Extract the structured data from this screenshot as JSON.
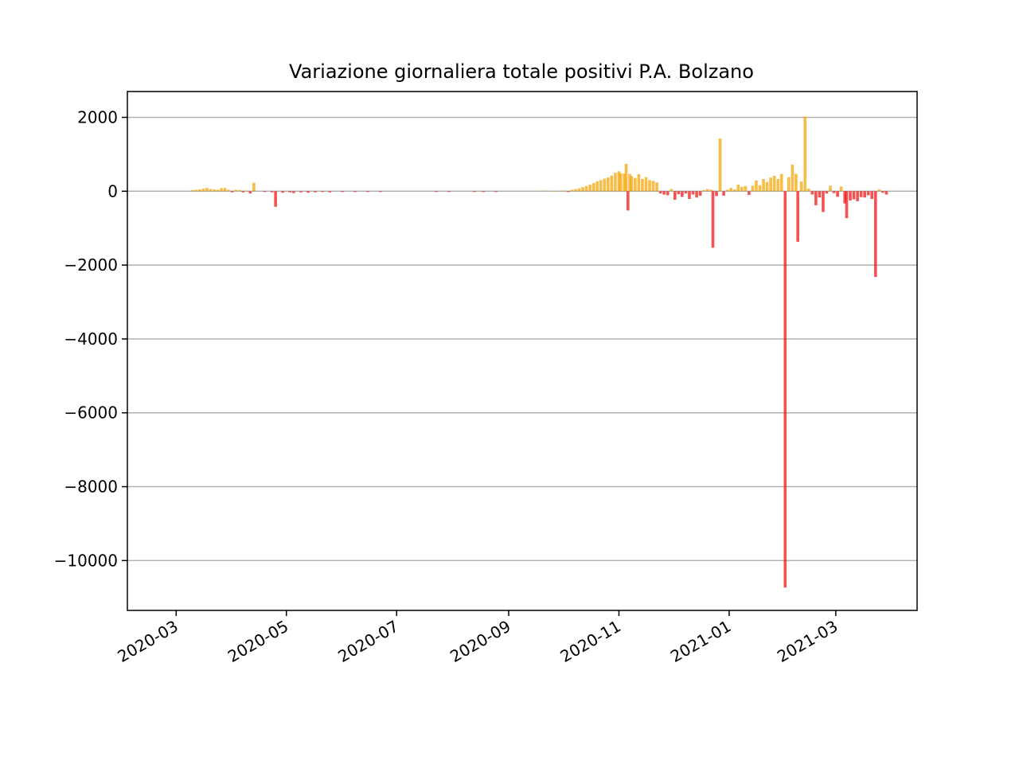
{
  "chart_data": {
    "type": "bar",
    "title": "Variazione giornaliera totale positivi P.A. Bolzano",
    "xlabel": "",
    "ylabel": "",
    "x_range": [
      "2020-02-03",
      "2021-04-15"
    ],
    "ylim": [
      -11350,
      2700
    ],
    "y_ticks": [
      2000,
      0,
      -2000,
      -4000,
      -6000,
      -8000,
      -10000
    ],
    "y_tick_labels": [
      "2000",
      "0",
      "−2000",
      "−4000",
      "−6000",
      "−8000",
      "−10000"
    ],
    "x_ticks": [
      "2020-03-01",
      "2020-05-01",
      "2020-07-01",
      "2020-09-01",
      "2020-11-01",
      "2021-01-01",
      "2021-03-01"
    ],
    "x_tick_labels": [
      "2020-03",
      "2020-05",
      "2020-07",
      "2020-09",
      "2020-11",
      "2021-01",
      "2021-03"
    ],
    "grid": "y",
    "colors": {
      "positive": "#f5a300",
      "negative": "#ee1111",
      "grid": "#b0b0b0"
    },
    "points": [
      [
        "2020-03-10",
        30
      ],
      [
        "2020-03-12",
        40
      ],
      [
        "2020-03-14",
        50
      ],
      [
        "2020-03-16",
        70
      ],
      [
        "2020-03-18",
        90
      ],
      [
        "2020-03-20",
        60
      ],
      [
        "2020-03-22",
        50
      ],
      [
        "2020-03-24",
        40
      ],
      [
        "2020-03-26",
        80
      ],
      [
        "2020-03-28",
        90
      ],
      [
        "2020-03-30",
        40
      ],
      [
        "2020-04-01",
        -30
      ],
      [
        "2020-04-03",
        40
      ],
      [
        "2020-04-05",
        30
      ],
      [
        "2020-04-07",
        -30
      ],
      [
        "2020-04-09",
        20
      ],
      [
        "2020-04-11",
        -60
      ],
      [
        "2020-04-13",
        230
      ],
      [
        "2020-04-19",
        -20
      ],
      [
        "2020-04-23",
        -30
      ],
      [
        "2020-04-25",
        -420
      ],
      [
        "2020-04-29",
        -40
      ],
      [
        "2020-05-03",
        -30
      ],
      [
        "2020-05-05",
        -50
      ],
      [
        "2020-05-09",
        -30
      ],
      [
        "2020-05-13",
        -40
      ],
      [
        "2020-05-17",
        -30
      ],
      [
        "2020-05-21",
        -20
      ],
      [
        "2020-05-25",
        -30
      ],
      [
        "2020-06-01",
        -20
      ],
      [
        "2020-06-08",
        -20
      ],
      [
        "2020-06-15",
        -10
      ],
      [
        "2020-06-22",
        -10
      ],
      [
        "2020-07-23",
        -20
      ],
      [
        "2020-07-30",
        -10
      ],
      [
        "2020-08-13",
        -10
      ],
      [
        "2020-08-18",
        -10
      ],
      [
        "2020-08-25",
        -10
      ],
      [
        "2020-09-20",
        20
      ],
      [
        "2020-09-27",
        10
      ],
      [
        "2020-10-01",
        20
      ],
      [
        "2020-10-04",
        -20
      ],
      [
        "2020-10-06",
        40
      ],
      [
        "2020-10-08",
        60
      ],
      [
        "2020-10-10",
        80
      ],
      [
        "2020-10-12",
        110
      ],
      [
        "2020-10-14",
        140
      ],
      [
        "2020-10-16",
        180
      ],
      [
        "2020-10-18",
        220
      ],
      [
        "2020-10-20",
        270
      ],
      [
        "2020-10-22",
        300
      ],
      [
        "2020-10-24",
        340
      ],
      [
        "2020-10-26",
        370
      ],
      [
        "2020-10-28",
        420
      ],
      [
        "2020-10-30",
        500
      ],
      [
        "2020-11-01",
        540
      ],
      [
        "2020-11-02",
        490
      ],
      [
        "2020-11-04",
        480
      ],
      [
        "2020-11-05",
        740
      ],
      [
        "2020-11-06",
        -520
      ],
      [
        "2020-11-07",
        470
      ],
      [
        "2020-11-08",
        410
      ],
      [
        "2020-11-10",
        360
      ],
      [
        "2020-11-12",
        460
      ],
      [
        "2020-11-14",
        330
      ],
      [
        "2020-11-16",
        380
      ],
      [
        "2020-11-18",
        300
      ],
      [
        "2020-11-20",
        280
      ],
      [
        "2020-11-22",
        240
      ],
      [
        "2020-11-24",
        -60
      ],
      [
        "2020-11-26",
        -90
      ],
      [
        "2020-11-28",
        -110
      ],
      [
        "2020-11-30",
        60
      ],
      [
        "2020-12-02",
        -230
      ],
      [
        "2020-12-04",
        -80
      ],
      [
        "2020-12-06",
        -150
      ],
      [
        "2020-12-08",
        -60
      ],
      [
        "2020-12-10",
        -210
      ],
      [
        "2020-12-12",
        -90
      ],
      [
        "2020-12-14",
        -170
      ],
      [
        "2020-12-16",
        -120
      ],
      [
        "2020-12-18",
        30
      ],
      [
        "2020-12-20",
        60
      ],
      [
        "2020-12-22",
        40
      ],
      [
        "2020-12-23",
        -1530
      ],
      [
        "2020-12-25",
        -130
      ],
      [
        "2020-12-27",
        1430
      ],
      [
        "2020-12-29",
        -120
      ],
      [
        "2020-12-31",
        40
      ],
      [
        "2021-01-02",
        90
      ],
      [
        "2021-01-04",
        50
      ],
      [
        "2021-01-06",
        180
      ],
      [
        "2021-01-08",
        120
      ],
      [
        "2021-01-10",
        140
      ],
      [
        "2021-01-12",
        -100
      ],
      [
        "2021-01-14",
        150
      ],
      [
        "2021-01-16",
        290
      ],
      [
        "2021-01-18",
        160
      ],
      [
        "2021-01-20",
        330
      ],
      [
        "2021-01-22",
        250
      ],
      [
        "2021-01-24",
        370
      ],
      [
        "2021-01-26",
        420
      ],
      [
        "2021-01-28",
        330
      ],
      [
        "2021-01-30",
        470
      ],
      [
        "2021-02-01",
        -10730
      ],
      [
        "2021-02-03",
        380
      ],
      [
        "2021-02-05",
        720
      ],
      [
        "2021-02-07",
        470
      ],
      [
        "2021-02-08",
        -1370
      ],
      [
        "2021-02-10",
        260
      ],
      [
        "2021-02-12",
        2020
      ],
      [
        "2021-02-14",
        70
      ],
      [
        "2021-02-16",
        -90
      ],
      [
        "2021-02-18",
        -380
      ],
      [
        "2021-02-20",
        -170
      ],
      [
        "2021-02-22",
        -560
      ],
      [
        "2021-02-24",
        -60
      ],
      [
        "2021-02-26",
        150
      ],
      [
        "2021-02-28",
        -50
      ],
      [
        "2021-03-02",
        -150
      ],
      [
        "2021-03-04",
        130
      ],
      [
        "2021-03-06",
        -330
      ],
      [
        "2021-03-07",
        -730
      ],
      [
        "2021-03-09",
        -250
      ],
      [
        "2021-03-11",
        -220
      ],
      [
        "2021-03-13",
        -270
      ],
      [
        "2021-03-15",
        -160
      ],
      [
        "2021-03-17",
        -170
      ],
      [
        "2021-03-19",
        -110
      ],
      [
        "2021-03-21",
        -210
      ],
      [
        "2021-03-23",
        -2320
      ],
      [
        "2021-03-25",
        50
      ],
      [
        "2021-03-27",
        -40
      ],
      [
        "2021-03-29",
        -90
      ]
    ]
  }
}
